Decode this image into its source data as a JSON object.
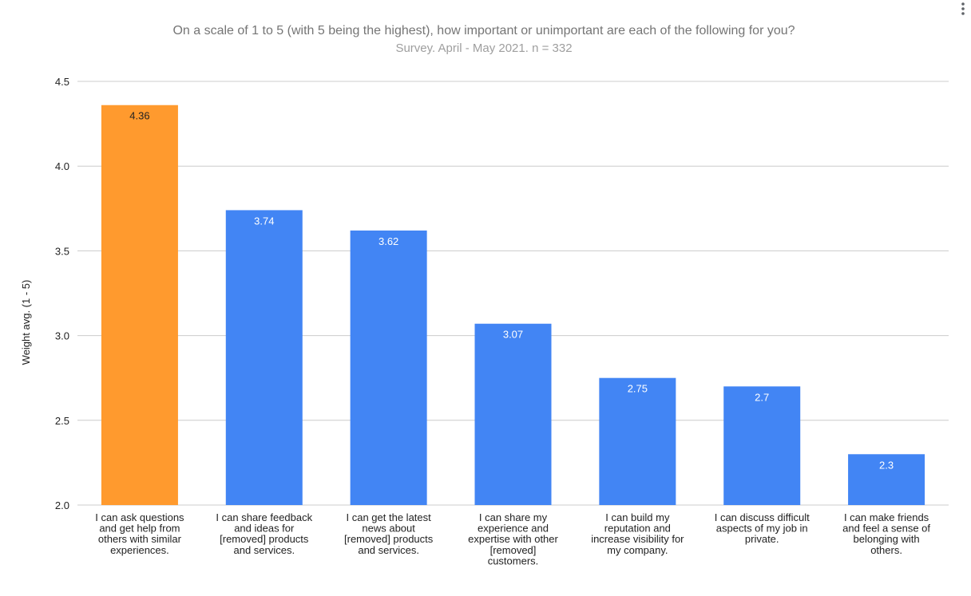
{
  "chart_data": {
    "type": "bar",
    "title": "On a scale of 1 to 5 (with 5 being the highest), how important or unimportant are each of the following for you?",
    "subtitle": "Survey. April - May 2021. n = 332",
    "xlabel": "",
    "ylabel": "Weight avg. (1 - 5)",
    "ylim": [
      2.0,
      4.5
    ],
    "yticks": [
      "2.0",
      "2.5",
      "3.0",
      "3.5",
      "4.0",
      "4.5"
    ],
    "grid": true,
    "categories": [
      [
        "I can ask questions",
        "and get help from",
        "others with similar",
        "experiences."
      ],
      [
        "I can share feedback",
        "and ideas for",
        "[removed] products",
        "and services."
      ],
      [
        "I can get the latest",
        "news about",
        "[removed] products",
        "and services."
      ],
      [
        "I can share my",
        "experience and",
        "expertise with other",
        "[removed]",
        "customers."
      ],
      [
        "I can build my",
        "reputation and",
        "increase visibility for",
        "my company."
      ],
      [
        "I can discuss difficult",
        "aspects of my job in",
        "private."
      ],
      [
        "I can make friends",
        "and feel a sense of",
        "belonging with",
        "others."
      ]
    ],
    "values": [
      4.36,
      3.74,
      3.62,
      3.07,
      2.75,
      2.7,
      2.3
    ],
    "data_labels": [
      "4.36",
      "3.74",
      "3.62",
      "3.07",
      "2.75",
      "2.7",
      "2.3"
    ],
    "colors": [
      "#ff9a2e",
      "#4285f4",
      "#4285f4",
      "#4285f4",
      "#4285f4",
      "#4285f4",
      "#4285f4"
    ],
    "label_colors": [
      "#222222",
      "#ffffff",
      "#ffffff",
      "#ffffff",
      "#ffffff",
      "#ffffff",
      "#ffffff"
    ]
  },
  "menu_icon": "more-vert-icon"
}
